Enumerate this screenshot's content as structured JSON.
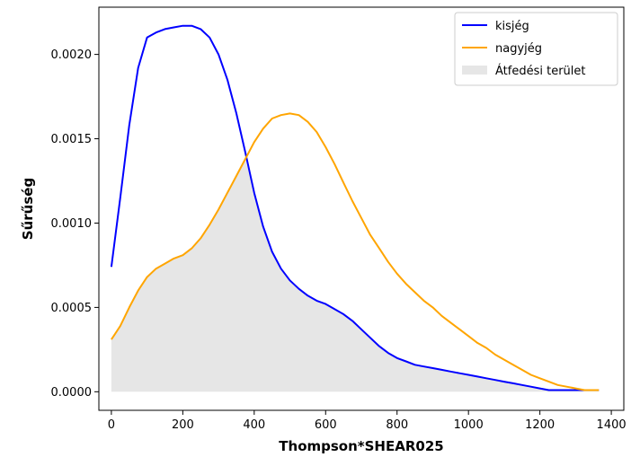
{
  "chart_data": {
    "type": "line",
    "title": "",
    "xlabel": "Thompson*SHEAR025",
    "ylabel": "Sűrűség",
    "xlim": [
      -35,
      1435
    ],
    "ylim": [
      -0.00011,
      0.00228
    ],
    "xticks": [
      0,
      200,
      400,
      600,
      800,
      1000,
      1200,
      1400
    ],
    "xtick_labels": [
      "0",
      "200",
      "400",
      "600",
      "800",
      "1000",
      "1200",
      "1400"
    ],
    "yticks": [
      0.0,
      0.0005,
      0.001,
      0.0015,
      0.002
    ],
    "ytick_labels": [
      "0.0000",
      "0.0005",
      "0.0010",
      "0.0015",
      "0.0020"
    ],
    "grid": false,
    "legend_position": "top-right",
    "series": [
      {
        "name": "kisjég",
        "color": "#0000ff",
        "x": [
          0,
          25,
          50,
          75,
          100,
          125,
          150,
          175,
          200,
          225,
          250,
          275,
          300,
          325,
          350,
          375,
          400,
          425,
          450,
          475,
          500,
          525,
          550,
          575,
          600,
          625,
          650,
          675,
          700,
          725,
          750,
          775,
          800,
          825,
          850,
          875,
          900,
          925,
          950,
          975,
          1000,
          1025,
          1050,
          1075,
          1100,
          1125,
          1150,
          1175,
          1200,
          1225,
          1250,
          1275,
          1300,
          1325,
          1350,
          1365
        ],
        "y": [
          0.00074,
          0.00115,
          0.00158,
          0.00192,
          0.0021,
          0.00213,
          0.00215,
          0.00216,
          0.00217,
          0.00217,
          0.00215,
          0.0021,
          0.002,
          0.00185,
          0.00165,
          0.00142,
          0.00118,
          0.00098,
          0.00083,
          0.00073,
          0.00066,
          0.00061,
          0.00057,
          0.00054,
          0.00052,
          0.00049,
          0.00046,
          0.00042,
          0.00037,
          0.00032,
          0.00027,
          0.00023,
          0.0002,
          0.00018,
          0.00016,
          0.00015,
          0.00014,
          0.00013,
          0.00012,
          0.00011,
          0.0001,
          9e-05,
          8e-05,
          7e-05,
          6e-05,
          5e-05,
          4e-05,
          3e-05,
          2e-05,
          1e-05,
          1e-05,
          1e-05,
          1e-05,
          1e-05,
          1e-05,
          1e-05
        ]
      },
      {
        "name": "nagyjég",
        "color": "#ffa500",
        "x": [
          0,
          25,
          50,
          75,
          100,
          125,
          150,
          175,
          200,
          225,
          250,
          275,
          300,
          325,
          350,
          375,
          400,
          425,
          450,
          475,
          500,
          525,
          550,
          575,
          600,
          625,
          650,
          675,
          700,
          725,
          750,
          775,
          800,
          825,
          850,
          875,
          900,
          925,
          950,
          975,
          1000,
          1025,
          1050,
          1075,
          1100,
          1125,
          1150,
          1175,
          1200,
          1225,
          1250,
          1275,
          1300,
          1325,
          1350,
          1365
        ],
        "y": [
          0.00031,
          0.00039,
          0.0005,
          0.0006,
          0.00068,
          0.00073,
          0.00076,
          0.00079,
          0.00081,
          0.00085,
          0.00091,
          0.00099,
          0.00108,
          0.00118,
          0.00128,
          0.00138,
          0.00148,
          0.00156,
          0.00162,
          0.00164,
          0.00165,
          0.00164,
          0.0016,
          0.00154,
          0.00145,
          0.00135,
          0.00124,
          0.00113,
          0.00103,
          0.00093,
          0.00085,
          0.00077,
          0.0007,
          0.00064,
          0.00059,
          0.00054,
          0.0005,
          0.00045,
          0.00041,
          0.00037,
          0.00033,
          0.00029,
          0.00026,
          0.00022,
          0.00019,
          0.00016,
          0.00013,
          0.0001,
          8e-05,
          6e-05,
          4e-05,
          3e-05,
          2e-05,
          1e-05,
          1e-05,
          1e-05
        ]
      }
    ],
    "fill": {
      "name": "Átfedési terület",
      "color": "#e6e6e6"
    },
    "legend": [
      "kisjég",
      "nagyjég",
      "Átfedési terület"
    ]
  }
}
